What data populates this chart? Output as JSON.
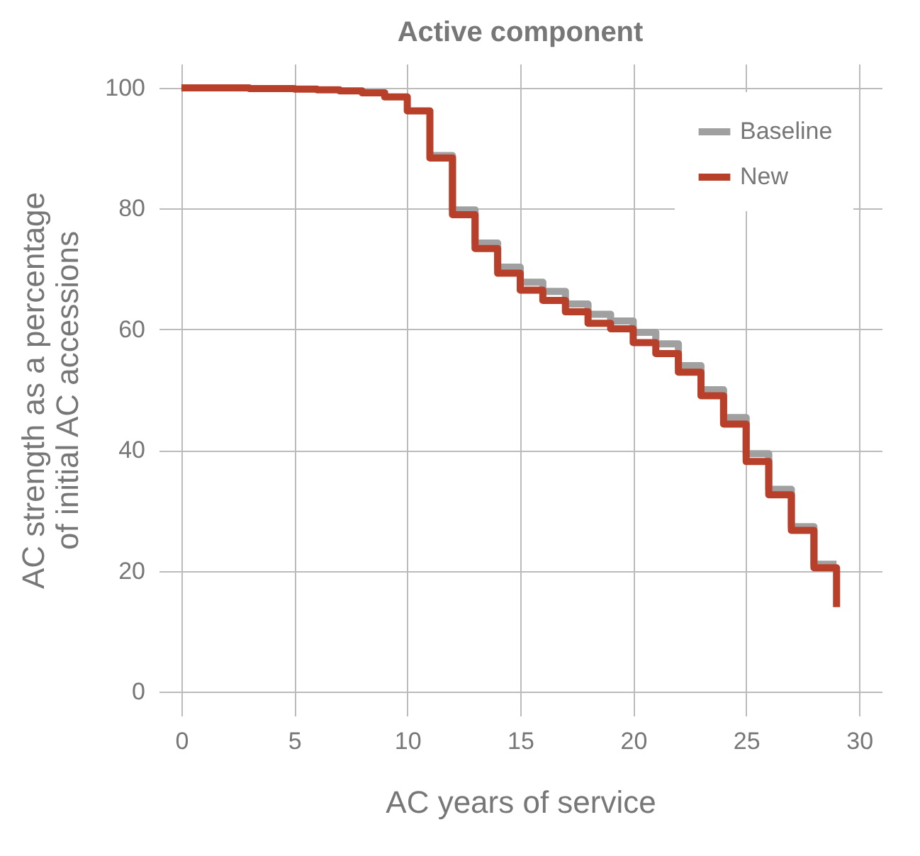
{
  "chart_data": {
    "type": "step",
    "title": "Active component",
    "xlabel": "AC years of service",
    "ylabel": "AC strength as a percentage\nof initial AC accessions",
    "x": [
      0,
      1,
      2,
      3,
      4,
      5,
      6,
      7,
      8,
      9,
      10,
      11,
      12,
      13,
      14,
      15,
      16,
      17,
      18,
      19,
      20,
      21,
      22,
      23,
      24,
      25,
      26,
      27,
      28,
      29
    ],
    "series": [
      {
        "name": "Baseline",
        "color": "#a0a0a0",
        "values": [
          null,
          null,
          null,
          null,
          null,
          null,
          null,
          null,
          null,
          null,
          null,
          88.8,
          79.8,
          74.3,
          70.3,
          67.8,
          66.3,
          64.2,
          62.5,
          61.4,
          59.5,
          57.6,
          54.0,
          50.0,
          45.4,
          39.4,
          33.5,
          27.3,
          21.1,
          21.1
        ]
      },
      {
        "name": "New",
        "color": "#b8402a",
        "values": [
          100,
          100,
          100,
          99.9,
          99.9,
          99.8,
          99.7,
          99.5,
          99.2,
          98.5,
          96.2,
          88.4,
          79.0,
          73.4,
          69.3,
          66.5,
          64.8,
          62.9,
          61.0,
          60.1,
          57.8,
          56.0,
          52.9,
          49.0,
          44.3,
          38.1,
          32.6,
          26.7,
          20.5,
          14.0
        ]
      }
    ],
    "xlim": [
      -1,
      31
    ],
    "ylim": [
      -4,
      104
    ],
    "xticks": [
      0,
      5,
      10,
      15,
      20,
      25,
      30
    ],
    "yticks": [
      0,
      20,
      40,
      60,
      80,
      100
    ],
    "grid": true,
    "legend": "top right",
    "marker": "none",
    "line_style": "solid"
  }
}
